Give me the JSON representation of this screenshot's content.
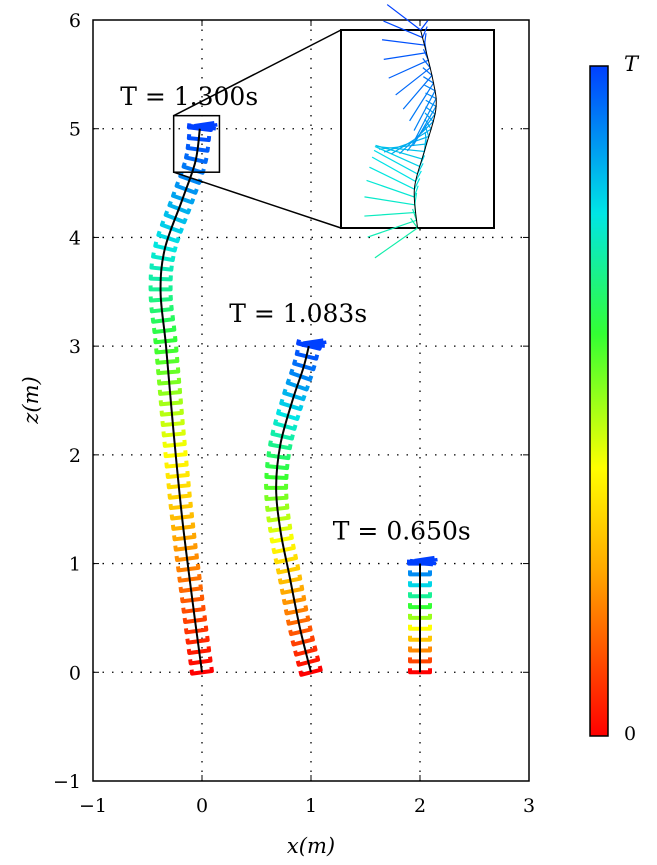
{
  "chart_data": {
    "type": "line",
    "xlabel": "x(m)",
    "ylabel": "z(m)",
    "xlim": [
      -1,
      3
    ],
    "ylim": [
      -1,
      6
    ],
    "x_ticks": [
      -1,
      0,
      1,
      2,
      3
    ],
    "y_ticks": [
      -1,
      0,
      1,
      2,
      3,
      4,
      5,
      6
    ],
    "x_tick_labels": [
      "−1",
      "0",
      "1",
      "2",
      "3"
    ],
    "y_tick_labels": [
      "−1",
      "0",
      "1",
      "2",
      "3",
      "4",
      "5",
      "6"
    ],
    "grid": "dotted",
    "colorbar": {
      "top_label": "T",
      "bottom_label": "0",
      "colormap": "jet"
    },
    "series": [
      {
        "annotation": "T = 1.300s",
        "annotation_anchor": [
          -0.75,
          5.22
        ],
        "path": [
          [
            0.0,
            0.0
          ],
          [
            -0.08,
            0.6
          ],
          [
            -0.18,
            1.4
          ],
          [
            -0.26,
            2.2
          ],
          [
            -0.33,
            3.0
          ],
          [
            -0.38,
            3.5
          ],
          [
            -0.34,
            3.9
          ],
          [
            -0.18,
            4.35
          ],
          [
            -0.06,
            4.7
          ],
          [
            -0.02,
            5.0
          ]
        ]
      },
      {
        "annotation": "T = 1.083s",
        "annotation_anchor": [
          0.25,
          3.22
        ],
        "path": [
          [
            1.0,
            0.0
          ],
          [
            0.9,
            0.4
          ],
          [
            0.8,
            0.9
          ],
          [
            0.72,
            1.3
          ],
          [
            0.68,
            1.7
          ],
          [
            0.72,
            2.1
          ],
          [
            0.83,
            2.5
          ],
          [
            0.93,
            2.8
          ],
          [
            0.98,
            3.0
          ]
        ]
      },
      {
        "annotation": "T = 0.650s",
        "annotation_anchor": [
          1.2,
          1.22
        ],
        "path": [
          [
            2.0,
            0.0
          ],
          [
            2.0,
            1.0
          ]
        ]
      }
    ],
    "inset": {
      "zoom_region": {
        "x": [
          -0.26,
          0.16
        ],
        "z": [
          4.6,
          5.12
        ]
      },
      "path": [
        [
          0.52,
          1.0
        ],
        [
          0.6,
          0.75
        ],
        [
          0.62,
          0.6
        ],
        [
          0.55,
          0.4
        ],
        [
          0.48,
          0.2
        ],
        [
          0.5,
          0.0
        ]
      ]
    }
  }
}
